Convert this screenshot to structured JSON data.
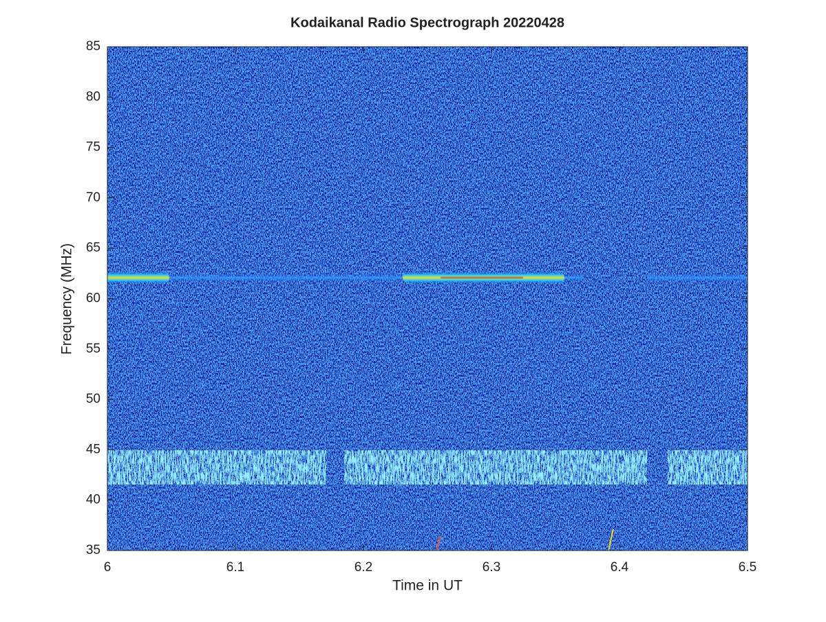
{
  "chart_data": {
    "type": "spectrogram",
    "title": "Kodaikanal Radio Spectrograph  20220428",
    "x_label": "Time in UT",
    "y_label": "Frequency (MHz)",
    "xlim": [
      6,
      6.5
    ],
    "xticks": [
      6,
      6.1,
      6.2,
      6.3,
      6.4,
      6.5
    ],
    "ylim": [
      35,
      85
    ],
    "yticks": [
      35,
      40,
      45,
      50,
      55,
      60,
      65,
      70,
      75,
      80,
      85
    ]
  }
}
